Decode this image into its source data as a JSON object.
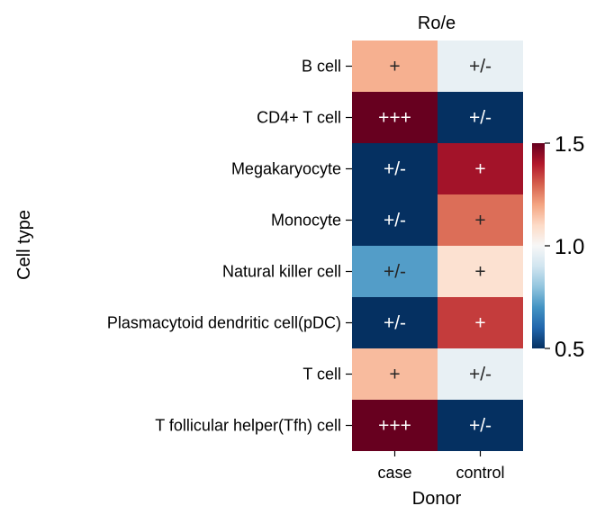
{
  "chart_data": {
    "type": "heatmap",
    "title": "Ro/e",
    "xlabel": "Donor",
    "ylabel": "Cell type",
    "x_categories": [
      "case",
      "control"
    ],
    "y_categories": [
      "B cell",
      "CD4+ T cell",
      "Megakaryocyte",
      "Monocyte",
      "Natural killer cell",
      "Plasmacytoid dendritic cell(pDC)",
      "T cell",
      "T follicular helper(Tfh) cell"
    ],
    "values": [
      [
        1.18,
        0.96
      ],
      [
        1.6,
        0.45
      ],
      [
        0.45,
        1.42
      ],
      [
        0.45,
        1.28
      ],
      [
        0.72,
        1.08
      ],
      [
        0.45,
        1.35
      ],
      [
        1.16,
        0.96
      ],
      [
        1.6,
        0.45
      ]
    ],
    "annotations": [
      [
        "+",
        "+/-"
      ],
      [
        "+++",
        "+/-"
      ],
      [
        "+/-",
        "+"
      ],
      [
        "+/-",
        "+"
      ],
      [
        "+/-",
        "+"
      ],
      [
        "+/-",
        "+"
      ],
      [
        "+",
        "+/-"
      ],
      [
        "+++",
        "+/-"
      ]
    ],
    "colorbar": {
      "vmin": 0.5,
      "vmax": 1.5,
      "ticks": [
        0.5,
        1.0,
        1.5
      ],
      "tick_labels": [
        "0.5",
        "1.0",
        "1.5"
      ],
      "colormap": "RdBu_r"
    }
  }
}
